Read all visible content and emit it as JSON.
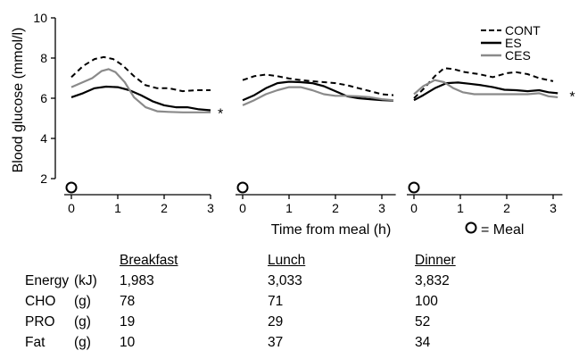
{
  "chart_data": {
    "type": "line",
    "ylabel": "Blood glucose (mmol/l)",
    "xlabel": "Time from meal (h)",
    "ylim": [
      2,
      10
    ],
    "yticks": [
      2,
      4,
      6,
      8,
      10
    ],
    "legend": {
      "placement": "top-right",
      "entries": [
        {
          "name": "CONT",
          "style": "dashed",
          "color": "#000000"
        },
        {
          "name": "ES",
          "style": "solid",
          "color": "#000000"
        },
        {
          "name": "CES",
          "style": "solid",
          "color": "#8a8a8a"
        }
      ]
    },
    "meal_legend": {
      "symbol": "O",
      "text": "= Meal"
    },
    "panels": [
      {
        "meal": "Breakfast",
        "xlim": [
          0,
          3
        ],
        "xticks": [
          0,
          1,
          2,
          3
        ],
        "marker": "*",
        "series": [
          {
            "name": "CONT",
            "points": [
              [
                0,
                7.05
              ],
              [
                0.25,
                7.6
              ],
              [
                0.5,
                7.95
              ],
              [
                0.7,
                8.05
              ],
              [
                0.9,
                7.95
              ],
              [
                1.1,
                7.65
              ],
              [
                1.35,
                7.1
              ],
              [
                1.6,
                6.65
              ],
              [
                1.85,
                6.5
              ],
              [
                2.1,
                6.5
              ],
              [
                2.4,
                6.35
              ],
              [
                2.7,
                6.4
              ],
              [
                3.0,
                6.4
              ]
            ]
          },
          {
            "name": "ES",
            "points": [
              [
                0,
                6.05
              ],
              [
                0.25,
                6.25
              ],
              [
                0.5,
                6.5
              ],
              [
                0.75,
                6.58
              ],
              [
                1.0,
                6.55
              ],
              [
                1.25,
                6.4
              ],
              [
                1.5,
                6.15
              ],
              [
                1.75,
                5.85
              ],
              [
                2.0,
                5.65
              ],
              [
                2.25,
                5.55
              ],
              [
                2.5,
                5.55
              ],
              [
                2.75,
                5.45
              ],
              [
                3.0,
                5.4
              ]
            ]
          },
          {
            "name": "CES",
            "points": [
              [
                0,
                6.55
              ],
              [
                0.2,
                6.75
              ],
              [
                0.45,
                7.0
              ],
              [
                0.65,
                7.35
              ],
              [
                0.8,
                7.45
              ],
              [
                0.95,
                7.3
              ],
              [
                1.15,
                6.8
              ],
              [
                1.35,
                6.05
              ],
              [
                1.6,
                5.55
              ],
              [
                1.85,
                5.35
              ],
              [
                2.1,
                5.32
              ],
              [
                2.4,
                5.3
              ],
              [
                2.7,
                5.3
              ],
              [
                3.0,
                5.3
              ]
            ]
          }
        ]
      },
      {
        "meal": "Lunch",
        "xlim": [
          0,
          3.3
        ],
        "xticks": [
          0,
          1,
          2,
          3
        ],
        "series": [
          {
            "name": "CONT",
            "points": [
              [
                0,
                6.9
              ],
              [
                0.25,
                7.1
              ],
              [
                0.5,
                7.18
              ],
              [
                0.75,
                7.1
              ],
              [
                1.0,
                6.98
              ],
              [
                1.25,
                6.9
              ],
              [
                1.5,
                6.85
              ],
              [
                1.75,
                6.8
              ],
              [
                2.0,
                6.75
              ],
              [
                2.25,
                6.65
              ],
              [
                2.5,
                6.5
              ],
              [
                2.75,
                6.35
              ],
              [
                3.0,
                6.2
              ],
              [
                3.25,
                6.15
              ]
            ]
          },
          {
            "name": "ES",
            "points": [
              [
                0,
                5.9
              ],
              [
                0.25,
                6.15
              ],
              [
                0.5,
                6.5
              ],
              [
                0.75,
                6.75
              ],
              [
                1.0,
                6.82
              ],
              [
                1.25,
                6.8
              ],
              [
                1.5,
                6.75
              ],
              [
                1.75,
                6.6
              ],
              [
                2.0,
                6.35
              ],
              [
                2.25,
                6.1
              ],
              [
                2.5,
                6.0
              ],
              [
                2.75,
                5.95
              ],
              [
                3.0,
                5.9
              ],
              [
                3.25,
                5.88
              ]
            ]
          },
          {
            "name": "CES",
            "points": [
              [
                0,
                5.65
              ],
              [
                0.25,
                5.9
              ],
              [
                0.5,
                6.2
              ],
              [
                0.75,
                6.4
              ],
              [
                1.0,
                6.55
              ],
              [
                1.25,
                6.55
              ],
              [
                1.5,
                6.4
              ],
              [
                1.75,
                6.2
              ],
              [
                2.0,
                6.12
              ],
              [
                2.25,
                6.12
              ],
              [
                2.5,
                6.1
              ],
              [
                2.75,
                6.05
              ],
              [
                3.0,
                5.95
              ],
              [
                3.25,
                5.9
              ]
            ]
          }
        ]
      },
      {
        "meal": "Dinner",
        "xlim": [
          0,
          3.2
        ],
        "xticks": [
          0,
          1,
          2,
          3
        ],
        "marker": "*",
        "series": [
          {
            "name": "CONT",
            "points": [
              [
                0,
                6.0
              ],
              [
                0.2,
                6.45
              ],
              [
                0.45,
                7.1
              ],
              [
                0.65,
                7.5
              ],
              [
                0.85,
                7.45
              ],
              [
                1.1,
                7.3
              ],
              [
                1.4,
                7.2
              ],
              [
                1.7,
                7.05
              ],
              [
                2.0,
                7.25
              ],
              [
                2.2,
                7.3
              ],
              [
                2.45,
                7.2
              ],
              [
                2.7,
                7.0
              ],
              [
                3.0,
                6.85
              ]
            ]
          },
          {
            "name": "ES",
            "points": [
              [
                0,
                5.9
              ],
              [
                0.2,
                6.15
              ],
              [
                0.45,
                6.5
              ],
              [
                0.7,
                6.75
              ],
              [
                0.95,
                6.78
              ],
              [
                1.2,
                6.72
              ],
              [
                1.45,
                6.65
              ],
              [
                1.7,
                6.55
              ],
              [
                1.95,
                6.42
              ],
              [
                2.2,
                6.4
              ],
              [
                2.45,
                6.35
              ],
              [
                2.7,
                6.4
              ],
              [
                2.9,
                6.3
              ],
              [
                3.1,
                6.25
              ]
            ]
          },
          {
            "name": "CES",
            "points": [
              [
                0,
                6.2
              ],
              [
                0.2,
                6.6
              ],
              [
                0.45,
                6.9
              ],
              [
                0.65,
                6.8
              ],
              [
                0.85,
                6.5
              ],
              [
                1.05,
                6.3
              ],
              [
                1.3,
                6.2
              ],
              [
                1.6,
                6.2
              ],
              [
                1.9,
                6.2
              ],
              [
                2.2,
                6.2
              ],
              [
                2.45,
                6.2
              ],
              [
                2.7,
                6.25
              ],
              [
                2.9,
                6.1
              ],
              [
                3.1,
                6.05
              ]
            ]
          }
        ]
      }
    ]
  },
  "table": {
    "columns": [
      "Breakfast",
      "Lunch",
      "Dinner"
    ],
    "rows": [
      {
        "label": "Energy",
        "unit": "(kJ)",
        "values": [
          "1,983",
          "3,033",
          "3,832"
        ]
      },
      {
        "label": "CHO",
        "unit": "(g)",
        "values": [
          "78",
          "71",
          "100"
        ]
      },
      {
        "label": "PRO",
        "unit": "(g)",
        "values": [
          "19",
          "29",
          "52"
        ]
      },
      {
        "label": "Fat",
        "unit": "(g)",
        "values": [
          "10",
          "37",
          "34"
        ]
      }
    ]
  }
}
